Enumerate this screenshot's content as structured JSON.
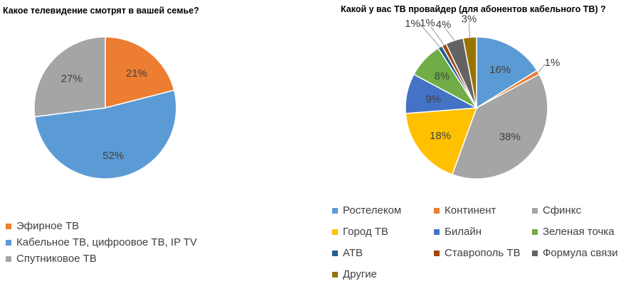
{
  "chart_data": [
    {
      "type": "pie",
      "title": "Какое телевидение смотрят в вашей семье?",
      "legend_position": "bottom-left",
      "slices": [
        {
          "label": "Эфирное ТВ",
          "value": 21,
          "value_label": "21%",
          "color": "#ED7D31"
        },
        {
          "label": "Кабельное ТВ, цифроовое ТВ, IP TV",
          "value": 52,
          "value_label": "52%",
          "color": "#5B9BD5"
        },
        {
          "label": "Спутниковое ТВ",
          "value": 27,
          "value_label": "27%",
          "color": "#A5A5A5"
        }
      ]
    },
    {
      "type": "pie",
      "title": "Какой у вас ТВ провайдер (для абонентов кабельного ТВ) ?",
      "legend_position": "bottom",
      "slices": [
        {
          "label": "Ростелеком",
          "value": 16,
          "value_label": "16%",
          "color": "#5B9BD5"
        },
        {
          "label": "Континент",
          "value": 1,
          "value_label": "1%",
          "color": "#ED7D31"
        },
        {
          "label": "Сфинкс",
          "value": 38,
          "value_label": "38%",
          "color": "#A5A5A5"
        },
        {
          "label": "Город ТВ",
          "value": 18,
          "value_label": "18%",
          "color": "#FFC000"
        },
        {
          "label": "Билайн",
          "value": 9,
          "value_label": "9%",
          "color": "#4472C4"
        },
        {
          "label": "Зеленая точка",
          "value": 8,
          "value_label": "8%",
          "color": "#70AD47"
        },
        {
          "label": "АТВ",
          "value": 1,
          "value_label": "1%",
          "color": "#255E91"
        },
        {
          "label": "Ставрополь ТВ",
          "value": 1,
          "value_label": "1%",
          "color": "#9E480E"
        },
        {
          "label": "Формула связи",
          "value": 4,
          "value_label": "4%",
          "color": "#636363"
        },
        {
          "label": "Другие",
          "value": 3,
          "value_label": "3%",
          "color": "#997300"
        }
      ]
    }
  ]
}
